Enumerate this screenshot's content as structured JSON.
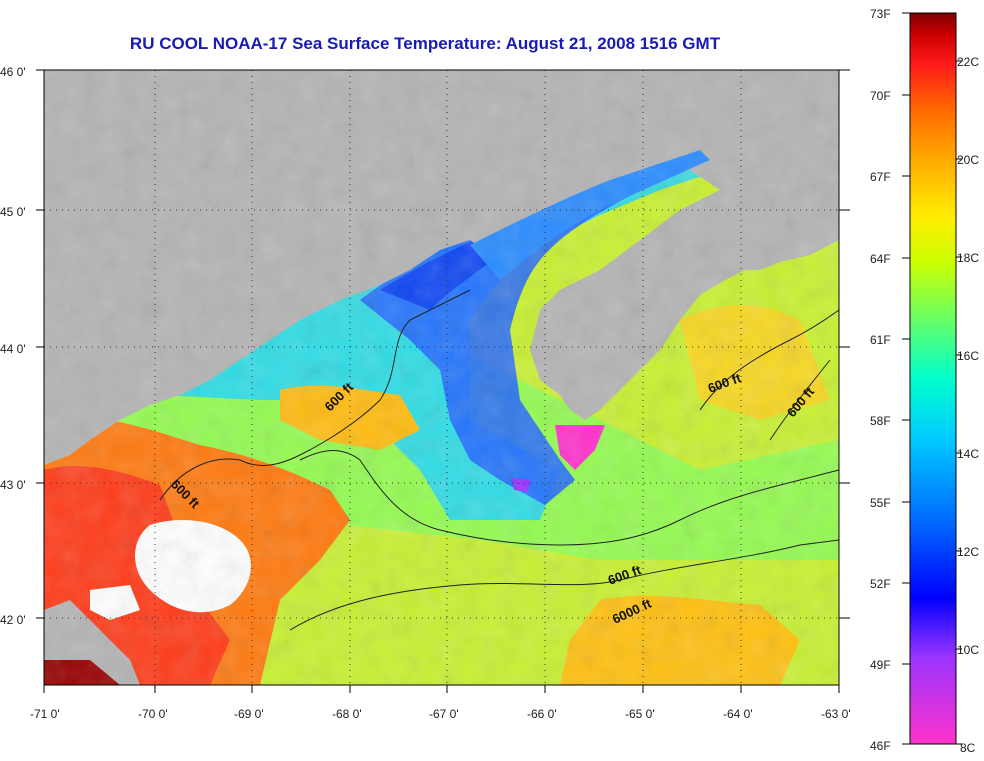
{
  "title": "RU COOL  NOAA-17  Sea Surface Temperature:  August 21, 2008 1516 GMT",
  "map": {
    "x_labels": [
      "-71 0'",
      "-70 0'",
      "-69 0'",
      "-68 0'",
      "-67 0'",
      "-66 0'",
      "-65 0'",
      "-64 0'",
      "-63 0'"
    ],
    "y_labels": [
      "46 0'",
      "45 0'",
      "44 0'",
      "43 0'",
      "42 0'"
    ],
    "contour_labels": [
      "600 ft",
      "600 ft",
      "600 ft",
      "600 ft",
      "600 ft",
      "6000 ft"
    ],
    "colors": {
      "land": "#b4b4b4",
      "cloud": "#ffffff",
      "grid": "#333333",
      "contour": "#222222"
    }
  },
  "colorbar": {
    "fahrenheit_labels": [
      "73F",
      "70F",
      "67F",
      "64F",
      "61F",
      "58F",
      "55F",
      "52F",
      "49F",
      "46F"
    ],
    "celsius_labels": [
      "22C",
      "20C",
      "18C",
      "16C",
      "14C",
      "12C",
      "10C",
      "8C"
    ],
    "colors": [
      "#ff33cc",
      "#8833ff",
      "#0000ff",
      "#0066ff",
      "#00ccff",
      "#00ffcc",
      "#66ff66",
      "#ccff00",
      "#ffee00",
      "#ffaa00",
      "#ff6600",
      "#ff1a1a",
      "#cc0000",
      "#800000"
    ]
  }
}
